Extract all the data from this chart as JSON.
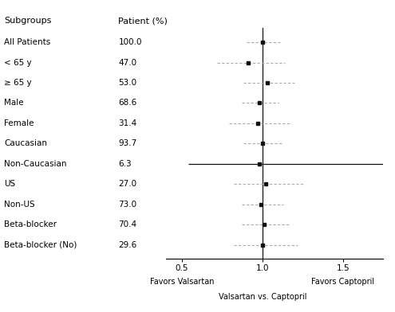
{
  "subgroups": [
    "All Patients",
    "< 65 y",
    "≥ 65 y",
    "Male",
    "Female",
    "Caucasian",
    "Non-Caucasian",
    "US",
    "Non-US",
    "Beta-blocker",
    "Beta-blocker (No)"
  ],
  "patient_pct": [
    "100.0",
    "47.0",
    "53.0",
    "68.6",
    "31.4",
    "93.7",
    "6.3",
    "27.0",
    "73.0",
    "70.4",
    "29.6"
  ],
  "estimates": [
    1.0,
    0.91,
    1.03,
    0.98,
    0.97,
    1.0,
    0.98,
    1.02,
    0.99,
    1.01,
    1.0
  ],
  "ci_low": [
    0.9,
    0.72,
    0.88,
    0.87,
    0.79,
    0.88,
    0.54,
    0.82,
    0.87,
    0.87,
    0.82
  ],
  "ci_high": [
    1.11,
    1.14,
    1.2,
    1.1,
    1.18,
    1.13,
    1.78,
    1.26,
    1.13,
    1.17,
    1.22
  ],
  "solid_line_indices": [
    6
  ],
  "xlim": [
    0.4,
    1.75
  ],
  "xticks": [
    0.5,
    1.0,
    1.5
  ],
  "xlabel_center": "Valsartan vs. Captopril",
  "xlabel_left": "Favors Valsartan",
  "xlabel_right": "Favors Captopril",
  "col1_header": "Subgroups",
  "col2_header": "Patient (%)",
  "vline_x": 1.0,
  "dot_color": "#111111",
  "ci_color_dashed": "#aaaaaa",
  "ci_color_solid": "#111111",
  "background_color": "#ffffff",
  "header_fontsize": 8,
  "label_fontsize": 7.5,
  "tick_fontsize": 7.5,
  "annot_fontsize": 7
}
